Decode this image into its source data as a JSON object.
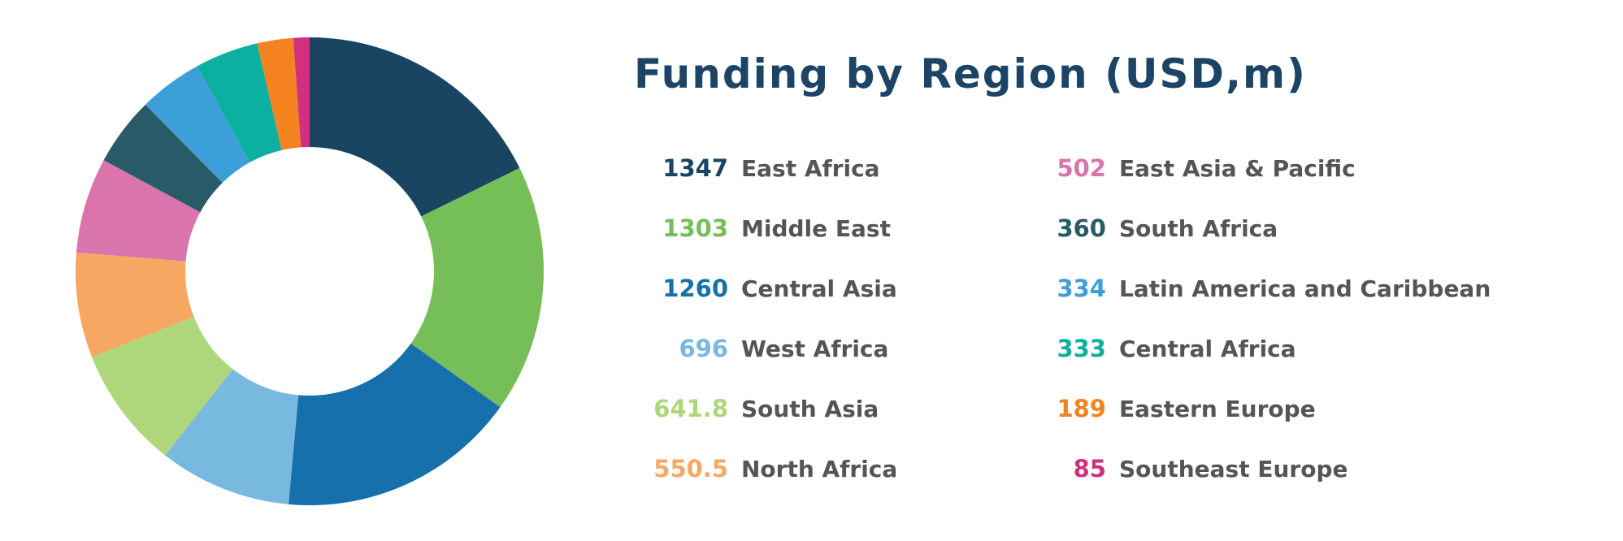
{
  "chart_data": {
    "type": "pie",
    "title": "Funding by Region (USD,m)",
    "legend_position": "right",
    "slices": [
      {
        "label": "East Africa",
        "value": 1347,
        "display": "1347",
        "color": "#194563"
      },
      {
        "label": "Middle East",
        "value": 1303,
        "display": "1303",
        "color": "#76be57"
      },
      {
        "label": "Central Asia",
        "value": 1260,
        "display": "1260",
        "color": "#1570ab"
      },
      {
        "label": "West Africa",
        "value": 696,
        "display": "696",
        "color": "#78b9e0"
      },
      {
        "label": "South Asia",
        "value": 641.8,
        "display": "641.8",
        "color": "#aed67a"
      },
      {
        "label": "North Africa",
        "value": 550.5,
        "display": "550.5",
        "color": "#f6a762"
      },
      {
        "label": "East Asia & Pacific",
        "value": 502,
        "display": "502",
        "color": "#d974ad"
      },
      {
        "label": "South Africa",
        "value": 360,
        "display": "360",
        "color": "#285a67"
      },
      {
        "label": "Latin America and Caribbean",
        "value": 334,
        "display": "334",
        "color": "#3d9fd8"
      },
      {
        "label": "Central Africa",
        "value": 333,
        "display": "333",
        "color": "#0cb0a1"
      },
      {
        "label": "Eastern Europe",
        "value": 189,
        "display": "189",
        "color": "#f3821f"
      },
      {
        "label": "Southeast Europe",
        "value": 85,
        "display": "85",
        "color": "#d2307e"
      }
    ]
  }
}
